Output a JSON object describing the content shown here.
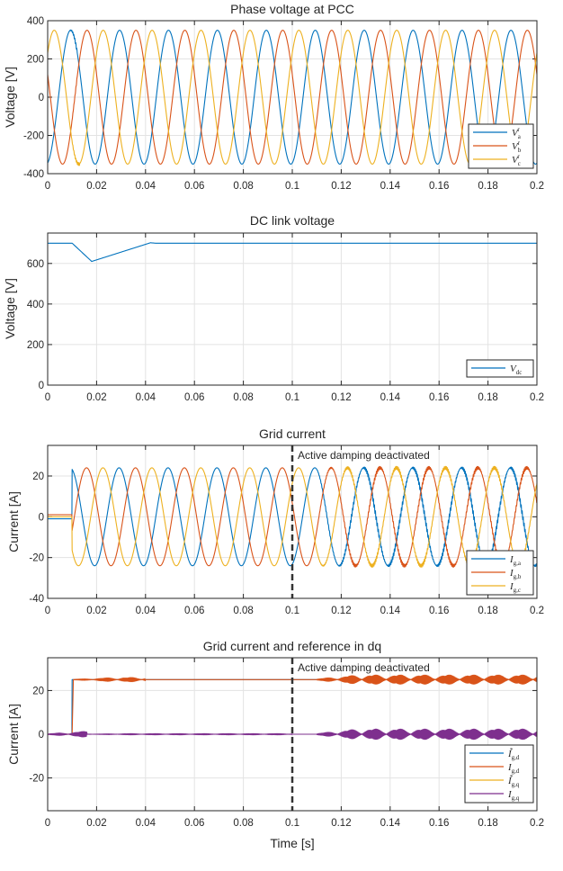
{
  "chart_data": [
    {
      "type": "line",
      "title": "Phase voltage at PCC",
      "ylabel": "Voltage [V]",
      "xlabel": "",
      "xlim": [
        0,
        0.2
      ],
      "ylim": [
        -400,
        400
      ],
      "xticks": [
        "0",
        "0.02",
        "0.04",
        "0.06",
        "0.08",
        "0.1",
        "0.12",
        "0.14",
        "0.16",
        "0.18",
        "0.2"
      ],
      "yticks": [
        -400,
        -200,
        0,
        200,
        400
      ],
      "grid": true,
      "legend_position": "bottom-right",
      "series": [
        {
          "label": {
            "base": "V",
            "sub": "a",
            "sup": "r"
          },
          "color": "#0072BD",
          "kind": "sine",
          "amplitude": 350,
          "frequency_hz": 50,
          "peak_time_s": 0.0094,
          "on_s": 0,
          "pre_value": 0,
          "ripple": [
            {
              "from": 0.009,
              "to": 0.012,
              "amplitude": 40
            }
          ]
        },
        {
          "label": {
            "base": "V",
            "sub": "b",
            "sup": "r"
          },
          "color": "#D95319",
          "kind": "sine",
          "amplitude": 350,
          "frequency_hz": 50,
          "peak_time_s": 0.0161,
          "on_s": 0,
          "pre_value": 0,
          "ripple": [
            {
              "from": 0.009,
              "to": 0.012,
              "amplitude": 25
            }
          ]
        },
        {
          "label": {
            "base": "V",
            "sub": "c",
            "sup": "r"
          },
          "color": "#EDB120",
          "kind": "sine",
          "amplitude": 350,
          "frequency_hz": 50,
          "peak_time_s": 0.0027,
          "on_s": 0,
          "pre_value": 0,
          "ripple": [
            {
              "from": 0.009,
              "to": 0.013,
              "amplitude": 30
            }
          ]
        }
      ]
    },
    {
      "type": "line",
      "title": "DC link voltage",
      "ylabel": "Voltage [V]",
      "xlabel": "",
      "xlim": [
        0,
        0.2
      ],
      "ylim": [
        0,
        750
      ],
      "xticks": [
        "0",
        "0.02",
        "0.04",
        "0.06",
        "0.08",
        "0.1",
        "0.12",
        "0.14",
        "0.16",
        "0.18",
        "0.2"
      ],
      "yticks": [
        0,
        200,
        400,
        600
      ],
      "grid": true,
      "legend_position": "bottom-right",
      "series": [
        {
          "label": {
            "base": "V",
            "sub": "dc",
            "sup": ""
          },
          "color": "#0072BD",
          "kind": "points",
          "points": [
            [
              0,
              700
            ],
            [
              0.01,
              700
            ],
            [
              0.018,
              610
            ],
            [
              0.042,
              702
            ],
            [
              0.044,
              700
            ],
            [
              0.2,
              700
            ]
          ],
          "ripple": []
        }
      ]
    },
    {
      "type": "line",
      "title": "Grid current",
      "ylabel": "Current [A]",
      "xlabel": "",
      "xlim": [
        0,
        0.2
      ],
      "ylim": [
        -40,
        35
      ],
      "xticks": [
        "0",
        "0.02",
        "0.04",
        "0.06",
        "0.08",
        "0.1",
        "0.12",
        "0.14",
        "0.16",
        "0.18",
        "0.2"
      ],
      "yticks": [
        -40,
        -20,
        0,
        20
      ],
      "grid": true,
      "legend_position": "bottom-right",
      "annotation": {
        "text": "Active damping deactivated",
        "x": 0.1
      },
      "series": [
        {
          "label": {
            "base": "I",
            "sub": "g,a",
            "sup": ""
          },
          "color": "#0072BD",
          "kind": "sine",
          "amplitude": 24,
          "frequency_hz": 50,
          "peak_time_s": 0.0092,
          "on_s": 0.01,
          "pre_value": -1,
          "ripple": [
            {
              "from": 0.11,
              "to": 0.2,
              "amplitude": 1.5
            }
          ]
        },
        {
          "label": {
            "base": "I",
            "sub": "g,b",
            "sup": ""
          },
          "color": "#D95319",
          "kind": "sine",
          "amplitude": 24,
          "frequency_hz": 50,
          "peak_time_s": 0.0159,
          "on_s": 0.01,
          "pre_value": 1,
          "ripple": [
            {
              "from": 0.11,
              "to": 0.2,
              "amplitude": 1.0
            }
          ]
        },
        {
          "label": {
            "base": "I",
            "sub": "g,c",
            "sup": ""
          },
          "color": "#EDB120",
          "kind": "sine",
          "amplitude": 24,
          "frequency_hz": 50,
          "peak_time_s": 0.0026,
          "on_s": 0.01,
          "pre_value": 0,
          "ripple": [
            {
              "from": 0.11,
              "to": 0.2,
              "amplitude": 1.0
            }
          ]
        }
      ]
    },
    {
      "type": "line",
      "title": "Grid current and reference in dq",
      "ylabel": "Current [A]",
      "xlabel": "Time [s]",
      "xlim": [
        0,
        0.2
      ],
      "ylim": [
        -35,
        35
      ],
      "xticks": [
        "0",
        "0.02",
        "0.04",
        "0.06",
        "0.08",
        "0.1",
        "0.12",
        "0.14",
        "0.16",
        "0.18",
        "0.2"
      ],
      "yticks": [
        -20,
        0,
        20
      ],
      "grid": true,
      "legend_position": "bottom-right",
      "annotation": {
        "text": "Active damping deactivated",
        "x": 0.1
      },
      "series": [
        {
          "label": {
            "base": "I",
            "sub": "g,d",
            "sup": "*"
          },
          "color": "#0072BD",
          "kind": "points",
          "points": [
            [
              0,
              0
            ],
            [
              0.0099,
              0
            ],
            [
              0.01,
              25
            ],
            [
              0.2,
              25
            ]
          ],
          "ripple": []
        },
        {
          "label": {
            "base": "I",
            "sub": "g,d",
            "sup": ""
          },
          "color": "#D95319",
          "kind": "points",
          "points": [
            [
              0,
              0
            ],
            [
              0.01,
              0
            ],
            [
              0.0105,
              25
            ],
            [
              0.2,
              25
            ]
          ],
          "ripple": [
            {
              "from": 0.0,
              "to": 0.01,
              "amplitude": 0.6
            },
            {
              "from": 0.011,
              "to": 0.04,
              "amplitude": 1.0
            },
            {
              "from": 0.11,
              "to": 0.2,
              "amplitude": 2.2
            }
          ]
        },
        {
          "label": {
            "base": "I",
            "sub": "g,q",
            "sup": "*"
          },
          "color": "#EDB120",
          "kind": "points",
          "points": [
            [
              0,
              0
            ],
            [
              0.2,
              0
            ]
          ],
          "ripple": []
        },
        {
          "label": {
            "base": "I",
            "sub": "g,q",
            "sup": ""
          },
          "color": "#7E2F8E",
          "kind": "points",
          "points": [
            [
              0,
              0
            ],
            [
              0.2,
              0
            ]
          ],
          "ripple": [
            {
              "from": 0.0,
              "to": 0.016,
              "amplitude": 1.5
            },
            {
              "from": 0.016,
              "to": 0.1,
              "amplitude": 0.3
            },
            {
              "from": 0.11,
              "to": 0.2,
              "amplitude": 2.5
            }
          ]
        }
      ]
    }
  ]
}
